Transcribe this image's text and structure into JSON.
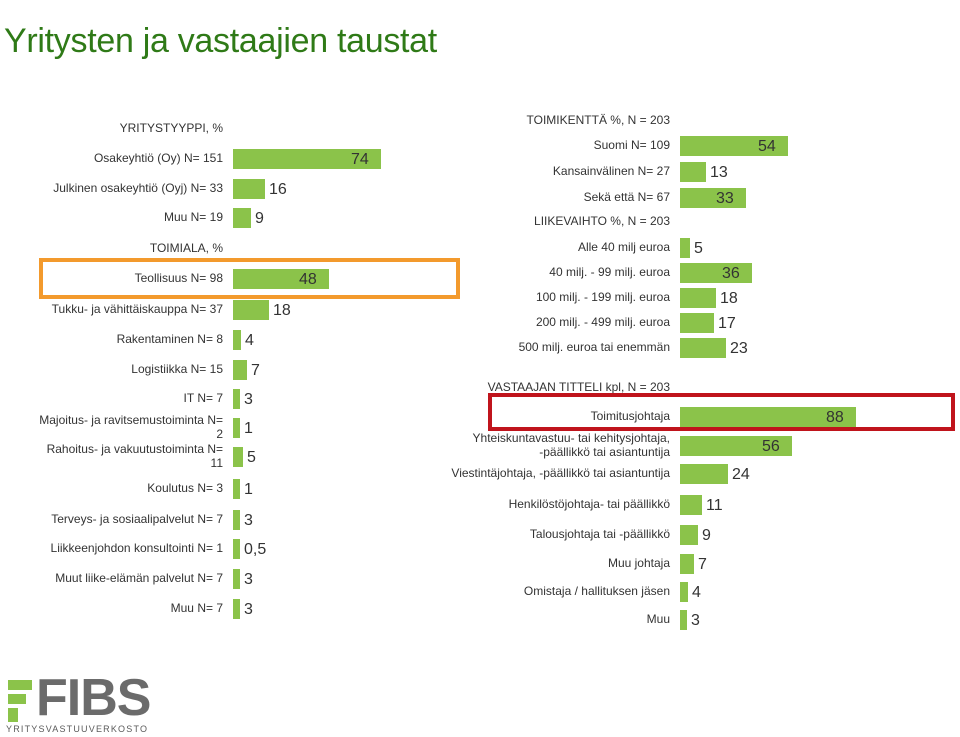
{
  "title": "Yritysten ja vastaajien taustat",
  "colors": {
    "bar": "#8bc34a",
    "title": "#2f7a17",
    "highlight_orange": "#f39a2d",
    "highlight_red": "#c0141c"
  },
  "logo": {
    "name": "FIBS",
    "subtitle": "YRITYSVASTUUVERKOSTO"
  },
  "chart_data": [
    {
      "type": "bar",
      "orientation": "horizontal",
      "sections": [
        {
          "header": "YRITYSTYYPPI, %",
          "categories": [
            "Osakeyhtiö (Oy) N= 151",
            "Julkinen osakeyhtiö (Oyj) N= 33",
            "Muu N= 19"
          ],
          "values": [
            74,
            16,
            9
          ],
          "value_labels": [
            "74",
            "16",
            "9"
          ]
        },
        {
          "header": "TOIMIALA, %",
          "categories": [
            "Teollisuus N= 98",
            "Tukku- ja vähittäiskauppa N= 37",
            "Rakentaminen N= 8",
            "Logistiikka N= 15",
            "IT N= 7",
            "Majoitus- ja ravitsemustoiminta N= 2",
            "Rahoitus- ja vakuutustoiminta N= 11",
            "Koulutus N= 3",
            "Terveys- ja sosiaalipalvelut N= 7",
            "Liikkeenjohdon konsultointi N= 1",
            "Muut liike-elämän palvelut N= 7",
            "Muu N= 7"
          ],
          "values": [
            48,
            18,
            4,
            7,
            3,
            1,
            5,
            1,
            3,
            0.5,
            3,
            3
          ],
          "value_labels": [
            "48",
            "18",
            "4",
            "7",
            "3",
            "1",
            "5",
            "1",
            "3",
            "0,5",
            "3",
            "3"
          ]
        }
      ],
      "highlight": {
        "category": "Teollisuus N= 98",
        "color": "orange"
      }
    },
    {
      "type": "bar",
      "orientation": "horizontal",
      "sections": [
        {
          "header": "TOIMIKENTTÄ %, N = 203",
          "categories": [
            "Suomi N= 109",
            "Kansainvälinen N= 27",
            "Sekä että N= 67"
          ],
          "values": [
            54,
            13,
            33
          ],
          "value_labels": [
            "54",
            "13",
            "33"
          ]
        },
        {
          "header": "LIIKEVAIHTO %, N = 203",
          "categories": [
            "Alle 40 milj euroa",
            "40 milj. - 99 milj. euroa",
            "100 milj. - 199 milj. euroa",
            "200 milj. - 499 milj. euroa",
            "500 milj. euroa tai enemmän"
          ],
          "values": [
            5,
            36,
            18,
            17,
            23
          ],
          "value_labels": [
            "5",
            "36",
            "18",
            "17",
            "23"
          ]
        },
        {
          "header": "VASTAAJAN TITTELI kpl, N = 203",
          "categories": [
            "Toimitusjohtaja",
            "Yhteiskuntavastuu- tai kehitysjohtaja, -päällikkö tai asiantuntija",
            "Viestintäjohtaja, -päällikkö tai asiantuntija",
            "Henkilöstöjohtaja- tai päällikkö",
            "Talousjohtaja tai -päällikkö",
            "Muu johtaja",
            "Omistaja / hallituksen jäsen",
            "Muu"
          ],
          "values": [
            88,
            56,
            24,
            11,
            9,
            7,
            4,
            3
          ],
          "value_labels": [
            "88",
            "56",
            "24",
            "11",
            "9",
            "7",
            "4",
            "3"
          ]
        }
      ],
      "highlight": {
        "category": "Toimitusjohtaja",
        "color": "red"
      }
    }
  ]
}
